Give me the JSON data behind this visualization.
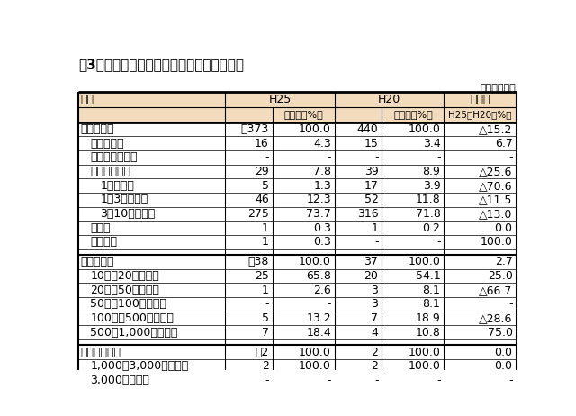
{
  "title": "第3表　漁船種類別・経営体階層別漁船隻数",
  "unit_label": "単位：経営体",
  "header_color": "#F2DCBD",
  "bg_color": "#FFFFFF",
  "rows": [
    {
      "label": "沿岸漁業層",
      "indent": 0,
      "bold": true,
      "h25": "計373",
      "h25_pct": "100.0",
      "h20": "440",
      "h20_pct": "100.0",
      "change": "△15.2",
      "section_top": true,
      "spacer": false
    },
    {
      "label": "漁船非使用",
      "indent": 1,
      "bold": false,
      "h25": "16",
      "h25_pct": "4.3",
      "h20": "15",
      "h20_pct": "3.4",
      "change": "6.7",
      "section_top": false,
      "spacer": false
    },
    {
      "label": "無動力漁船のみ",
      "indent": 1,
      "bold": false,
      "h25": "-",
      "h25_pct": "-",
      "h20": "-",
      "h20_pct": "-",
      "change": "-",
      "section_top": false,
      "spacer": false
    },
    {
      "label": "船外機付漁船",
      "indent": 1,
      "bold": false,
      "h25": "29",
      "h25_pct": "7.8",
      "h20": "39",
      "h20_pct": "8.9",
      "change": "△25.6",
      "section_top": false,
      "spacer": false
    },
    {
      "label": "1トン未満",
      "indent": 2,
      "bold": false,
      "h25": "5",
      "h25_pct": "1.3",
      "h20": "17",
      "h20_pct": "3.9",
      "change": "△70.6",
      "section_top": false,
      "spacer": false
    },
    {
      "label": "1～3トン未満",
      "indent": 2,
      "bold": false,
      "h25": "46",
      "h25_pct": "12.3",
      "h20": "52",
      "h20_pct": "11.8",
      "change": "△11.5",
      "section_top": false,
      "spacer": false
    },
    {
      "label": "3～10トン未満",
      "indent": 2,
      "bold": false,
      "h25": "275",
      "h25_pct": "73.7",
      "h20": "316",
      "h20_pct": "71.8",
      "change": "△13.0",
      "section_top": false,
      "spacer": false
    },
    {
      "label": "定置網",
      "indent": 1,
      "bold": false,
      "h25": "1",
      "h25_pct": "0.3",
      "h20": "1",
      "h20_pct": "0.2",
      "change": "0.0",
      "section_top": false,
      "spacer": false
    },
    {
      "label": "海面養殖",
      "indent": 1,
      "bold": false,
      "h25": "1",
      "h25_pct": "0.3",
      "h20": "-",
      "h20_pct": "-",
      "change": "100.0",
      "section_top": false,
      "spacer": false
    },
    {
      "label": "",
      "indent": 0,
      "bold": false,
      "h25": "",
      "h25_pct": "",
      "h20": "",
      "h20_pct": "",
      "change": "",
      "section_top": false,
      "spacer": true
    },
    {
      "label": "中小漁業層",
      "indent": 0,
      "bold": true,
      "h25": "計38",
      "h25_pct": "100.0",
      "h20": "37",
      "h20_pct": "100.0",
      "change": "2.7",
      "section_top": true,
      "spacer": false
    },
    {
      "label": "10～　20トン未満",
      "indent": 1,
      "bold": false,
      "h25": "25",
      "h25_pct": "65.8",
      "h20": "20",
      "h20_pct": "54.1",
      "change": "25.0",
      "section_top": false,
      "spacer": false
    },
    {
      "label": "20～　50トン未満",
      "indent": 1,
      "bold": false,
      "h25": "1",
      "h25_pct": "2.6",
      "h20": "3",
      "h20_pct": "8.1",
      "change": "△66.7",
      "section_top": false,
      "spacer": false
    },
    {
      "label": "50～　100トン未満",
      "indent": 1,
      "bold": false,
      "h25": "-",
      "h25_pct": "-",
      "h20": "3",
      "h20_pct": "8.1",
      "change": "-",
      "section_top": false,
      "spacer": false
    },
    {
      "label": "100～　500トン未満",
      "indent": 1,
      "bold": false,
      "h25": "5",
      "h25_pct": "13.2",
      "h20": "7",
      "h20_pct": "18.9",
      "change": "△28.6",
      "section_top": false,
      "spacer": false
    },
    {
      "label": "500～1,000トン未満",
      "indent": 1,
      "bold": false,
      "h25": "7",
      "h25_pct": "18.4",
      "h20": "4",
      "h20_pct": "10.8",
      "change": "75.0",
      "section_top": false,
      "spacer": false
    },
    {
      "label": "",
      "indent": 0,
      "bold": false,
      "h25": "",
      "h25_pct": "",
      "h20": "",
      "h20_pct": "",
      "change": "",
      "section_top": false,
      "spacer": true
    },
    {
      "label": "大規模漁業層",
      "indent": 0,
      "bold": true,
      "h25": "計2",
      "h25_pct": "100.0",
      "h20": "2",
      "h20_pct": "100.0",
      "change": "0.0",
      "section_top": true,
      "spacer": false
    },
    {
      "label": "1,000～3,000トン未満",
      "indent": 1,
      "bold": false,
      "h25": "2",
      "h25_pct": "100.0",
      "h20": "2",
      "h20_pct": "100.0",
      "change": "0.0",
      "section_top": false,
      "spacer": false
    },
    {
      "label": "3,000トン以上",
      "indent": 1,
      "bold": false,
      "h25": "-",
      "h25_pct": "-",
      "h20": "-",
      "h20_pct": "-",
      "change": "-",
      "section_top": false,
      "spacer": false
    }
  ]
}
